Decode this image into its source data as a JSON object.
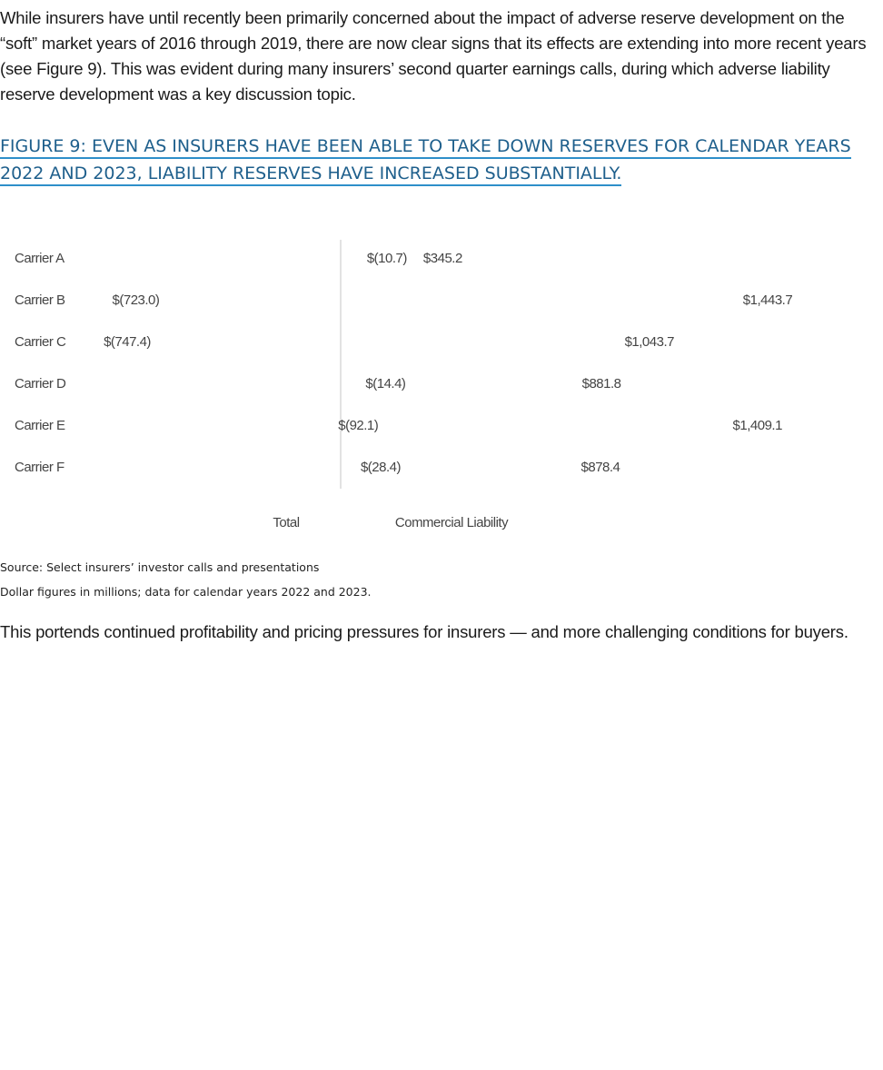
{
  "intro_text": "While insurers have until recently been primarily concerned about the impact of adverse reserve development on the “soft” market years of 2016 through 2019, there are now clear signs that its effects are extending into more recent years (see Figure 9). This was evident during many insurers’ second quarter earnings calls, during which adverse liability reserve development was a key discussion topic.",
  "figure_title": "FIGURE 9: EVEN AS INSURERS HAVE BEEN ABLE TO TAKE DOWN RESERVES FOR CALENDAR YEARS 2022 AND 2023, LIABILITY RESERVES HAVE INCREASED SUBSTANTIALLY.",
  "source_line": "Source: Select insurers’ investor calls and presentations",
  "note_line": "Dollar figures in millions; data for calendar years 2022 and 2023.",
  "closing_text": "This portends continued profitability and pricing pressures for insurers — and more challenging conditions for buyers.",
  "chart_data": {
    "type": "bar",
    "orientation": "horizontal",
    "categories": [
      "Carrier A",
      "Carrier B",
      "Carrier C",
      "Carrier D",
      "Carrier E",
      "Carrier F"
    ],
    "series": [
      {
        "name": "Total",
        "values": [
          -10.7,
          -723.0,
          -747.4,
          -14.4,
          -92.1,
          -28.4
        ],
        "labels": [
          "$(10.7)",
          "$(723.0)",
          "$(747.4)",
          "$(14.4)",
          "$(92.1)",
          "$(28.4)"
        ]
      },
      {
        "name": "Commercial Liability",
        "values": [
          345.2,
          1443.7,
          1043.7,
          881.8,
          1409.1,
          878.4
        ],
        "labels": [
          "$345.2",
          "$1,443.7",
          "$1,043.7",
          "$881.8",
          "$1,409.1",
          "$878.4"
        ]
      }
    ],
    "grid": false,
    "legend": "bottom"
  }
}
